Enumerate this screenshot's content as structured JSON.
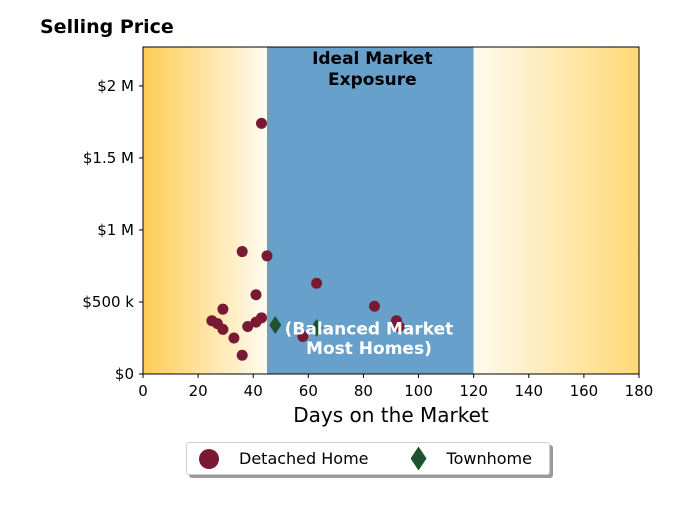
{
  "chart_data": {
    "type": "scatter",
    "title": "Selling Price",
    "xlabel": "Days on the Market",
    "ylabel": "",
    "xlim": [
      0,
      180
    ],
    "ylim": [
      0,
      2270000
    ],
    "x_ticks": [
      0,
      20,
      40,
      60,
      80,
      100,
      120,
      140,
      160,
      180
    ],
    "y_ticks": [
      {
        "value": 0,
        "label": "$0"
      },
      {
        "value": 500000,
        "label": "$500 k"
      },
      {
        "value": 1000000,
        "label": "$1 M"
      },
      {
        "value": 1500000,
        "label": "$1.5 M"
      },
      {
        "value": 2000000,
        "label": "$2 M"
      }
    ],
    "regions": [
      {
        "label": "",
        "x_range": [
          0,
          45
        ],
        "kind": "gradient-left",
        "color": "#ffcc55"
      },
      {
        "label": "Ideal Market Exposure",
        "x_range": [
          45,
          120
        ],
        "kind": "solid",
        "color": "#68a0cc"
      },
      {
        "label": "",
        "x_range": [
          120,
          180
        ],
        "kind": "gradient-right",
        "color": "#ffcc55"
      }
    ],
    "annotations": [
      {
        "text": "(Balanced Market",
        "x": 82,
        "y": 275000
      },
      {
        "text": "Most Homes)",
        "x": 82,
        "y": 140000
      }
    ],
    "series": [
      {
        "name": "Detached Home",
        "marker": "circle",
        "color": "#7a1934",
        "points": [
          {
            "x": 43,
            "y": 1740000
          },
          {
            "x": 36,
            "y": 850000
          },
          {
            "x": 45,
            "y": 820000
          },
          {
            "x": 63,
            "y": 630000
          },
          {
            "x": 41,
            "y": 550000
          },
          {
            "x": 84,
            "y": 470000
          },
          {
            "x": 29,
            "y": 450000
          },
          {
            "x": 92,
            "y": 370000
          },
          {
            "x": 25,
            "y": 370000
          },
          {
            "x": 27,
            "y": 350000
          },
          {
            "x": 43,
            "y": 390000
          },
          {
            "x": 41,
            "y": 360000
          },
          {
            "x": 38,
            "y": 330000
          },
          {
            "x": 29,
            "y": 310000
          },
          {
            "x": 93,
            "y": 330000
          },
          {
            "x": 33,
            "y": 250000
          },
          {
            "x": 58,
            "y": 260000
          },
          {
            "x": 36,
            "y": 130000
          }
        ]
      },
      {
        "name": "Townhome",
        "marker": "diamond",
        "color": "#1e5230",
        "points": [
          {
            "x": 48,
            "y": 340000
          },
          {
            "x": 63,
            "y": 320000
          }
        ]
      }
    ],
    "legend": {
      "position": "bottom-center",
      "labels": [
        "Detached Home",
        "Townhome"
      ]
    }
  }
}
